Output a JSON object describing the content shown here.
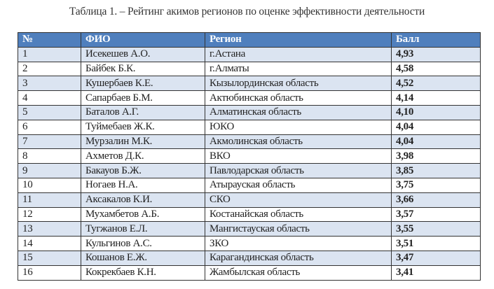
{
  "caption": "Таблица 1. – Рейтинг акимов регионов по оценке эффективности деятельности",
  "colors": {
    "header_bg": "#4f7fbd",
    "alt_row_bg": "#dbe4f1"
  },
  "table": {
    "headers": [
      "№",
      "ФИО",
      "Регион",
      "Балл"
    ],
    "rows": [
      [
        "1",
        "Исекешев А.О.",
        "г.Астана",
        "4,93"
      ],
      [
        "2",
        "Байбек Б.К.",
        "г.Алматы",
        "4,58"
      ],
      [
        "3",
        "Кушербаев К.Е.",
        "Кызылординская область",
        "4,52"
      ],
      [
        "4",
        "Сапарбаев Б.М.",
        "Актюбинская область",
        "4,14"
      ],
      [
        "5",
        "Баталов А.Г.",
        "Алматинская область",
        "4,10"
      ],
      [
        "6",
        "Туймебаев Ж.К.",
        "ЮКО",
        "4,04"
      ],
      [
        "7",
        "Мурзалин М.К.",
        "Акмолинская область",
        "4,04"
      ],
      [
        "8",
        "Ахметов Д.К.",
        "ВКО",
        "3,98"
      ],
      [
        "9",
        "Бакауов Б.Ж.",
        "Павлодарская область",
        "3,85"
      ],
      [
        "10",
        "Ногаев Н.А.",
        "Атырауская область",
        "3,75"
      ],
      [
        "11",
        "Аксакалов К.И.",
        "СКО",
        "3,66"
      ],
      [
        "12",
        "Мухамбетов А.Б.",
        "Костанайская область",
        "3,57"
      ],
      [
        "13",
        "Тугжанов Е.Л.",
        "Мангистауская область",
        "3,55"
      ],
      [
        "14",
        "Кульгинов А.С.",
        "ЗКО",
        "3,51"
      ],
      [
        "15",
        "Кошанов Е.Ж.",
        "Карагандинская область",
        "3,47"
      ],
      [
        "16",
        "Кокрекбаев К.Н.",
        "Жамбылская область",
        "3,41"
      ]
    ]
  }
}
